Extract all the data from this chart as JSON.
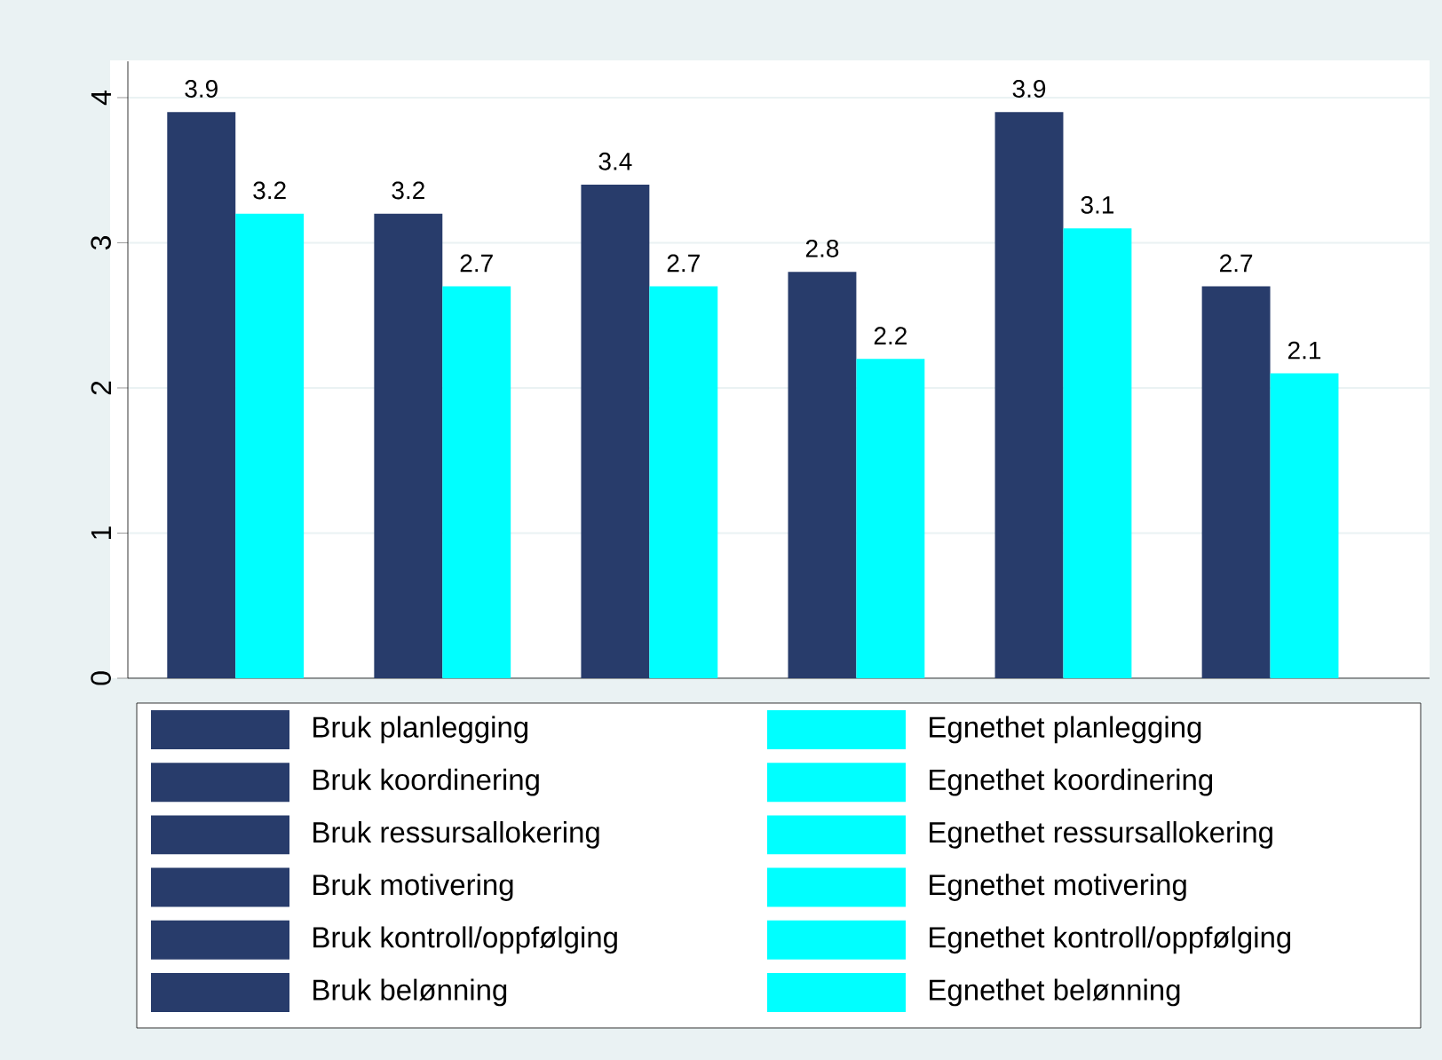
{
  "chart_data": {
    "type": "bar",
    "categories": [
      null,
      null,
      null,
      null,
      null,
      null
    ],
    "series": [
      {
        "name": "Bruk planlegging",
        "color": "#283c6b",
        "values": [
          3.9,
          null,
          null,
          null,
          null,
          null
        ]
      },
      {
        "name": "Egnethet planlegging",
        "color": "#00ffff",
        "values": [
          3.2,
          null,
          null,
          null,
          null,
          null
        ]
      },
      {
        "name": "Bruk koordinering",
        "color": "#283c6b",
        "values": [
          null,
          3.2,
          null,
          null,
          null,
          null
        ]
      },
      {
        "name": "Egnethet koordinering",
        "color": "#00ffff",
        "values": [
          null,
          2.7,
          null,
          null,
          null,
          null
        ]
      },
      {
        "name": "Bruk ressursallokering",
        "color": "#283c6b",
        "values": [
          null,
          null,
          3.4,
          null,
          null,
          null
        ]
      },
      {
        "name": "Egnethet ressursallokering",
        "color": "#00ffff",
        "values": [
          null,
          null,
          2.7,
          null,
          null,
          null
        ]
      },
      {
        "name": "Bruk motivering",
        "color": "#283c6b",
        "values": [
          null,
          null,
          null,
          2.8,
          null,
          null
        ]
      },
      {
        "name": "Egnethet motivering",
        "color": "#00ffff",
        "values": [
          null,
          null,
          null,
          2.2,
          null,
          null
        ]
      },
      {
        "name": "Bruk kontroll/oppfølging",
        "color": "#283c6b",
        "values": [
          null,
          null,
          null,
          null,
          3.9,
          null
        ]
      },
      {
        "name": "Egnethet kontroll/oppfølging",
        "color": "#00ffff",
        "values": [
          null,
          null,
          null,
          null,
          3.1,
          null
        ]
      },
      {
        "name": "Bruk belønning",
        "color": "#283c6b",
        "values": [
          null,
          null,
          null,
          null,
          null,
          2.7
        ]
      },
      {
        "name": "Egnethet belønning",
        "color": "#00ffff",
        "values": [
          null,
          null,
          null,
          null,
          null,
          2.1
        ]
      }
    ],
    "ylim": [
      0,
      4.25
    ],
    "yticks": [
      0,
      1,
      2,
      3,
      4
    ],
    "grid": "y",
    "data_labels": true,
    "legend": "bottom"
  }
}
